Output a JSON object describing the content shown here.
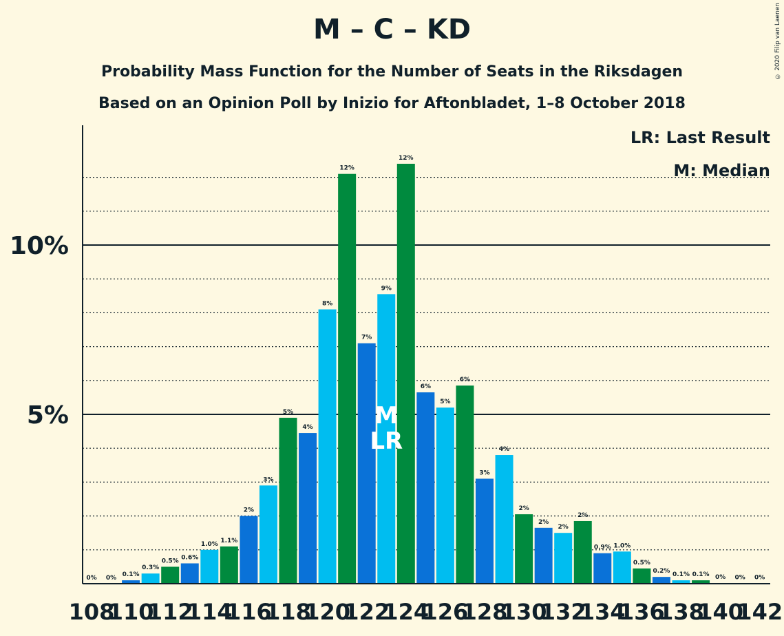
{
  "title": "M – C – KD",
  "subtitle1": "Probability Mass Function for the Number of Seats in the Riksdagen",
  "subtitle2": "Based on an Opinion Poll by Inizio for Aftonbladet, 1–8 October 2018",
  "copyright": "© 2020 Filip van Laenen",
  "legend": {
    "lr": "LR: Last Result",
    "m": "M: Median"
  },
  "markers": {
    "median": "M",
    "last_result": "LR"
  },
  "colors": {
    "background": "#fef9e2",
    "blue": "#0a72d8",
    "cyan": "#00bdf0",
    "green": "#008a3e",
    "text": "#10202a"
  },
  "chart_data": {
    "type": "bar",
    "x": [
      108,
      109,
      110,
      111,
      112,
      113,
      114,
      115,
      116,
      117,
      118,
      119,
      120,
      121,
      122,
      123,
      124,
      125,
      126,
      127,
      128,
      129,
      130,
      131,
      132,
      133,
      134,
      135,
      136,
      137,
      138,
      139,
      140,
      141,
      142
    ],
    "values": [
      0,
      0,
      0.1,
      0.3,
      0.5,
      0.6,
      1.0,
      1.1,
      2.0,
      2.9,
      4.9,
      4.45,
      8.1,
      12.1,
      7.1,
      8.55,
      12.4,
      5.65,
      5.2,
      5.85,
      3.1,
      3.8,
      2.05,
      1.65,
      1.5,
      1.85,
      0.9,
      0.95,
      0.45,
      0.2,
      0.1,
      0.1,
      0.02,
      0.01,
      0.01
    ],
    "labels": [
      "0%",
      "0%",
      "0.1%",
      "0.3%",
      "0.5%",
      "0.6%",
      "1.0%",
      "1.1%",
      "2%",
      "3%",
      "5%",
      "4%",
      "8%",
      "12%",
      "7%",
      "9%",
      "12%",
      "6%",
      "5%",
      "6%",
      "3%",
      "4%",
      "2%",
      "2%",
      "2%",
      "2%",
      "0.9%",
      "1.0%",
      "0.5%",
      "0.2%",
      "0.1%",
      "0.1%",
      "0%",
      "0%",
      "0%"
    ],
    "bar_colors": [
      "blue",
      "cyan",
      "blue",
      "cyan",
      "green",
      "blue",
      "cyan",
      "green",
      "blue",
      "cyan",
      "green",
      "blue",
      "cyan",
      "green",
      "blue",
      "cyan",
      "green",
      "blue",
      "cyan",
      "green",
      "blue",
      "cyan",
      "green",
      "blue",
      "cyan",
      "green",
      "blue",
      "cyan",
      "green",
      "blue",
      "cyan",
      "green",
      "blue",
      "cyan",
      "green"
    ],
    "x_tick_labels": [
      "108",
      "110",
      "112",
      "114",
      "116",
      "118",
      "120",
      "122",
      "124",
      "126",
      "128",
      "130",
      "132",
      "134",
      "136",
      "138",
      "140",
      "142"
    ],
    "y_ticks": [
      5,
      10
    ],
    "y_tick_labels": [
      "5%",
      "10%"
    ],
    "ylim": [
      0,
      13.5
    ],
    "median_seat": 123,
    "last_result_seat": 123
  }
}
